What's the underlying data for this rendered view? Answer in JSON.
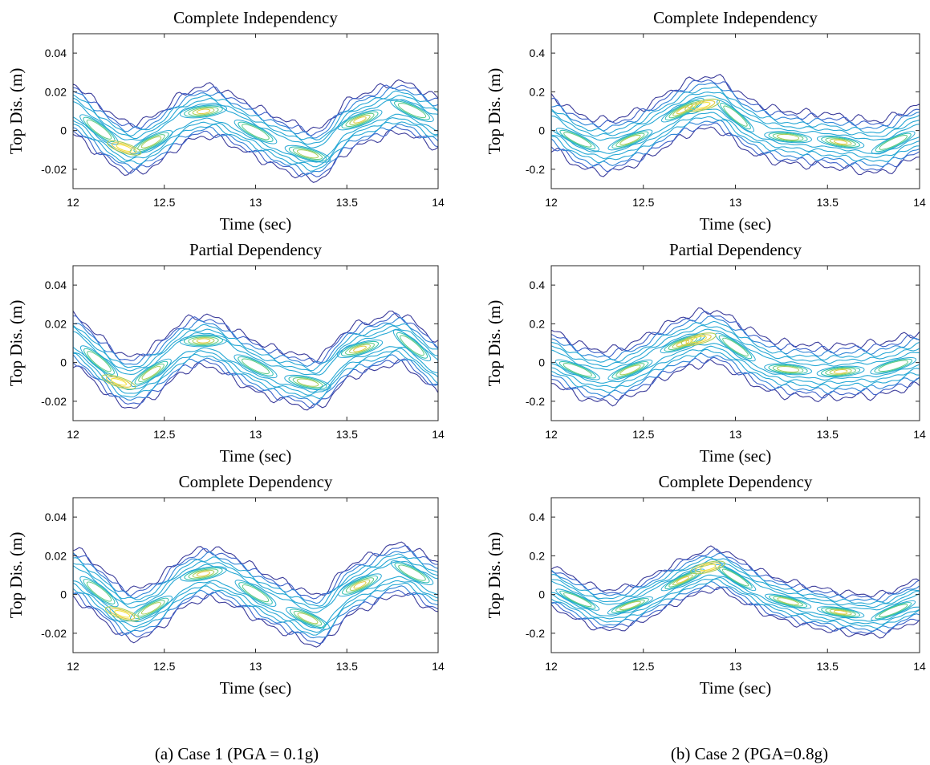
{
  "figure": {
    "captions": [
      "(a) Case 1 (PGA = 0.1g)",
      "(b) Case 2 (PGA=0.8g)"
    ]
  },
  "colors": {
    "levels": [
      "#3b3b9a",
      "#3e61c9",
      "#2f86d8",
      "#26a8d5",
      "#2bbfae",
      "#5cc880",
      "#a8cd55",
      "#e0c93e",
      "#f5e23a"
    ]
  },
  "chart_data": [
    {
      "type": "contour",
      "title": "Complete Independency",
      "xlabel": "Time (sec)",
      "ylabel": "Top Dis. (m)",
      "xlim": [
        12,
        14
      ],
      "ylim": [
        -0.03,
        0.05
      ],
      "xticks": [
        12,
        12.5,
        13,
        13.5,
        14
      ],
      "xtick_labels": [
        "12",
        "12.5",
        "13",
        "13.5",
        "14"
      ],
      "yticks": [
        -0.02,
        0,
        0.02,
        0.04
      ],
      "ytick_labels": [
        "-0.02",
        "0",
        "0.02",
        "0.04"
      ],
      "centerline": {
        "x": [
          12,
          12.15,
          12.3,
          12.45,
          12.6,
          12.75,
          12.9,
          13.05,
          13.2,
          13.35,
          13.5,
          13.65,
          13.8,
          14
        ],
        "y": [
          0.011,
          0.0,
          -0.009,
          -0.005,
          0.006,
          0.01,
          0.004,
          -0.003,
          -0.009,
          -0.012,
          0.002,
          0.008,
          0.012,
          0.004
        ]
      },
      "band_halfwidth": [
        0.004,
        0.0058,
        0.0076,
        0.0094,
        0.0112,
        0.013
      ],
      "peak": {
        "x": 12.28,
        "y": -0.009
      }
    },
    {
      "type": "contour",
      "title": "Complete Independency",
      "xlabel": "Time (sec)",
      "ylabel": "Top Dis. (m)",
      "xlim": [
        12,
        14
      ],
      "ylim": [
        -0.3,
        0.5
      ],
      "xticks": [
        12,
        12.5,
        13,
        13.5,
        14
      ],
      "xtick_labels": [
        "12",
        "12.5",
        "13",
        "13.5",
        "14"
      ],
      "yticks": [
        -0.2,
        0,
        0.2,
        0.4
      ],
      "ytick_labels": [
        "-0.2",
        "0",
        "0.2",
        "0.4"
      ],
      "centerline": {
        "x": [
          12,
          12.15,
          12.3,
          12.45,
          12.6,
          12.75,
          12.9,
          13.05,
          13.2,
          13.35,
          13.5,
          13.65,
          13.8,
          14
        ],
        "y": [
          0.04,
          -0.05,
          -0.08,
          -0.04,
          0.04,
          0.12,
          0.14,
          0.04,
          -0.02,
          -0.04,
          -0.05,
          -0.07,
          -0.08,
          0.0
        ]
      },
      "band_halfwidth": [
        0.035,
        0.055,
        0.075,
        0.095,
        0.115,
        0.135
      ],
      "peak": {
        "x": 12.82,
        "y": 0.13
      }
    },
    {
      "type": "contour",
      "title": "Partial Dependency",
      "xlabel": "Time (sec)",
      "ylabel": "Top Dis. (m)",
      "xlim": [
        12,
        14
      ],
      "ylim": [
        -0.03,
        0.05
      ],
      "xticks": [
        12,
        12.5,
        13,
        13.5,
        14
      ],
      "xtick_labels": [
        "12",
        "12.5",
        "13",
        "13.5",
        "14"
      ],
      "yticks": [
        -0.02,
        0,
        0.02,
        0.04
      ],
      "ytick_labels": [
        "-0.02",
        "0",
        "0.02",
        "0.04"
      ],
      "centerline": {
        "x": [
          12,
          12.15,
          12.3,
          12.45,
          12.6,
          12.75,
          12.9,
          13.05,
          13.2,
          13.35,
          13.5,
          13.65,
          13.8,
          14
        ],
        "y": [
          0.012,
          0.0,
          -0.01,
          -0.004,
          0.008,
          0.011,
          0.003,
          -0.004,
          -0.008,
          -0.01,
          0.004,
          0.009,
          0.012,
          -0.002
        ]
      },
      "band_halfwidth": [
        0.004,
        0.0058,
        0.0076,
        0.0094,
        0.0112,
        0.013
      ],
      "peak": {
        "x": 12.25,
        "y": -0.01
      }
    },
    {
      "type": "contour",
      "title": "Partial Dependency",
      "xlabel": "Time (sec)",
      "ylabel": "Top Dis. (m)",
      "xlim": [
        12,
        14
      ],
      "ylim": [
        -0.3,
        0.5
      ],
      "xticks": [
        12,
        12.5,
        13,
        13.5,
        14
      ],
      "xtick_labels": [
        "12",
        "12.5",
        "13",
        "13.5",
        "14"
      ],
      "yticks": [
        -0.2,
        0,
        0.2,
        0.4
      ],
      "ytick_labels": [
        "-0.2",
        "0",
        "0.2",
        "0.4"
      ],
      "centerline": {
        "x": [
          12,
          12.15,
          12.3,
          12.45,
          12.6,
          12.75,
          12.9,
          13.05,
          13.2,
          13.35,
          13.5,
          13.65,
          13.8,
          14
        ],
        "y": [
          0.03,
          -0.04,
          -0.07,
          -0.03,
          0.05,
          0.11,
          0.13,
          0.05,
          -0.02,
          -0.04,
          -0.05,
          -0.04,
          -0.03,
          0.02
        ]
      },
      "band_halfwidth": [
        0.035,
        0.055,
        0.075,
        0.095,
        0.115,
        0.135
      ],
      "peak": {
        "x": 12.8,
        "y": 0.12
      }
    },
    {
      "type": "contour",
      "title": "Complete Dependency",
      "xlabel": "Time (sec)",
      "ylabel": "Top Dis. (m)",
      "xlim": [
        12,
        14
      ],
      "ylim": [
        -0.03,
        0.05
      ],
      "xticks": [
        12,
        12.5,
        13,
        13.5,
        14
      ],
      "xtick_labels": [
        "12",
        "12.5",
        "13",
        "13.5",
        "14"
      ],
      "yticks": [
        -0.02,
        0,
        0.02,
        0.04
      ],
      "ytick_labels": [
        "-0.02",
        "0",
        "0.02",
        "0.04"
      ],
      "centerline": {
        "x": [
          12,
          12.15,
          12.3,
          12.45,
          12.6,
          12.75,
          12.9,
          13.05,
          13.2,
          13.35,
          13.5,
          13.65,
          13.8,
          14
        ],
        "y": [
          0.011,
          0.001,
          -0.01,
          -0.006,
          0.006,
          0.011,
          0.006,
          -0.002,
          -0.008,
          -0.013,
          0.001,
          0.008,
          0.013,
          0.004
        ]
      },
      "band_halfwidth": [
        0.004,
        0.0058,
        0.0076,
        0.0094,
        0.0112,
        0.013
      ],
      "peak": {
        "x": 12.27,
        "y": -0.01
      }
    },
    {
      "type": "contour",
      "title": "Complete Dependency",
      "xlabel": "Time (sec)",
      "ylabel": "Top Dis. (m)",
      "xlim": [
        12,
        14
      ],
      "ylim": [
        -0.3,
        0.5
      ],
      "xticks": [
        12,
        12.5,
        13,
        13.5,
        14
      ],
      "xtick_labels": [
        "12",
        "12.5",
        "13",
        "13.5",
        "14"
      ],
      "yticks": [
        -0.2,
        0,
        0.2,
        0.4
      ],
      "ytick_labels": [
        "-0.2",
        "0",
        "0.2",
        "0.4"
      ],
      "centerline": {
        "x": [
          12,
          12.15,
          12.3,
          12.45,
          12.6,
          12.75,
          12.9,
          13.05,
          13.2,
          13.35,
          13.5,
          13.65,
          13.8,
          14
        ],
        "y": [
          0.04,
          -0.03,
          -0.08,
          -0.05,
          0.02,
          0.09,
          0.13,
          0.06,
          -0.01,
          -0.05,
          -0.08,
          -0.1,
          -0.1,
          -0.03
        ]
      },
      "band_halfwidth": [
        0.03,
        0.045,
        0.06,
        0.075,
        0.09,
        0.105
      ],
      "peak": {
        "x": 12.85,
        "y": 0.14
      }
    }
  ]
}
